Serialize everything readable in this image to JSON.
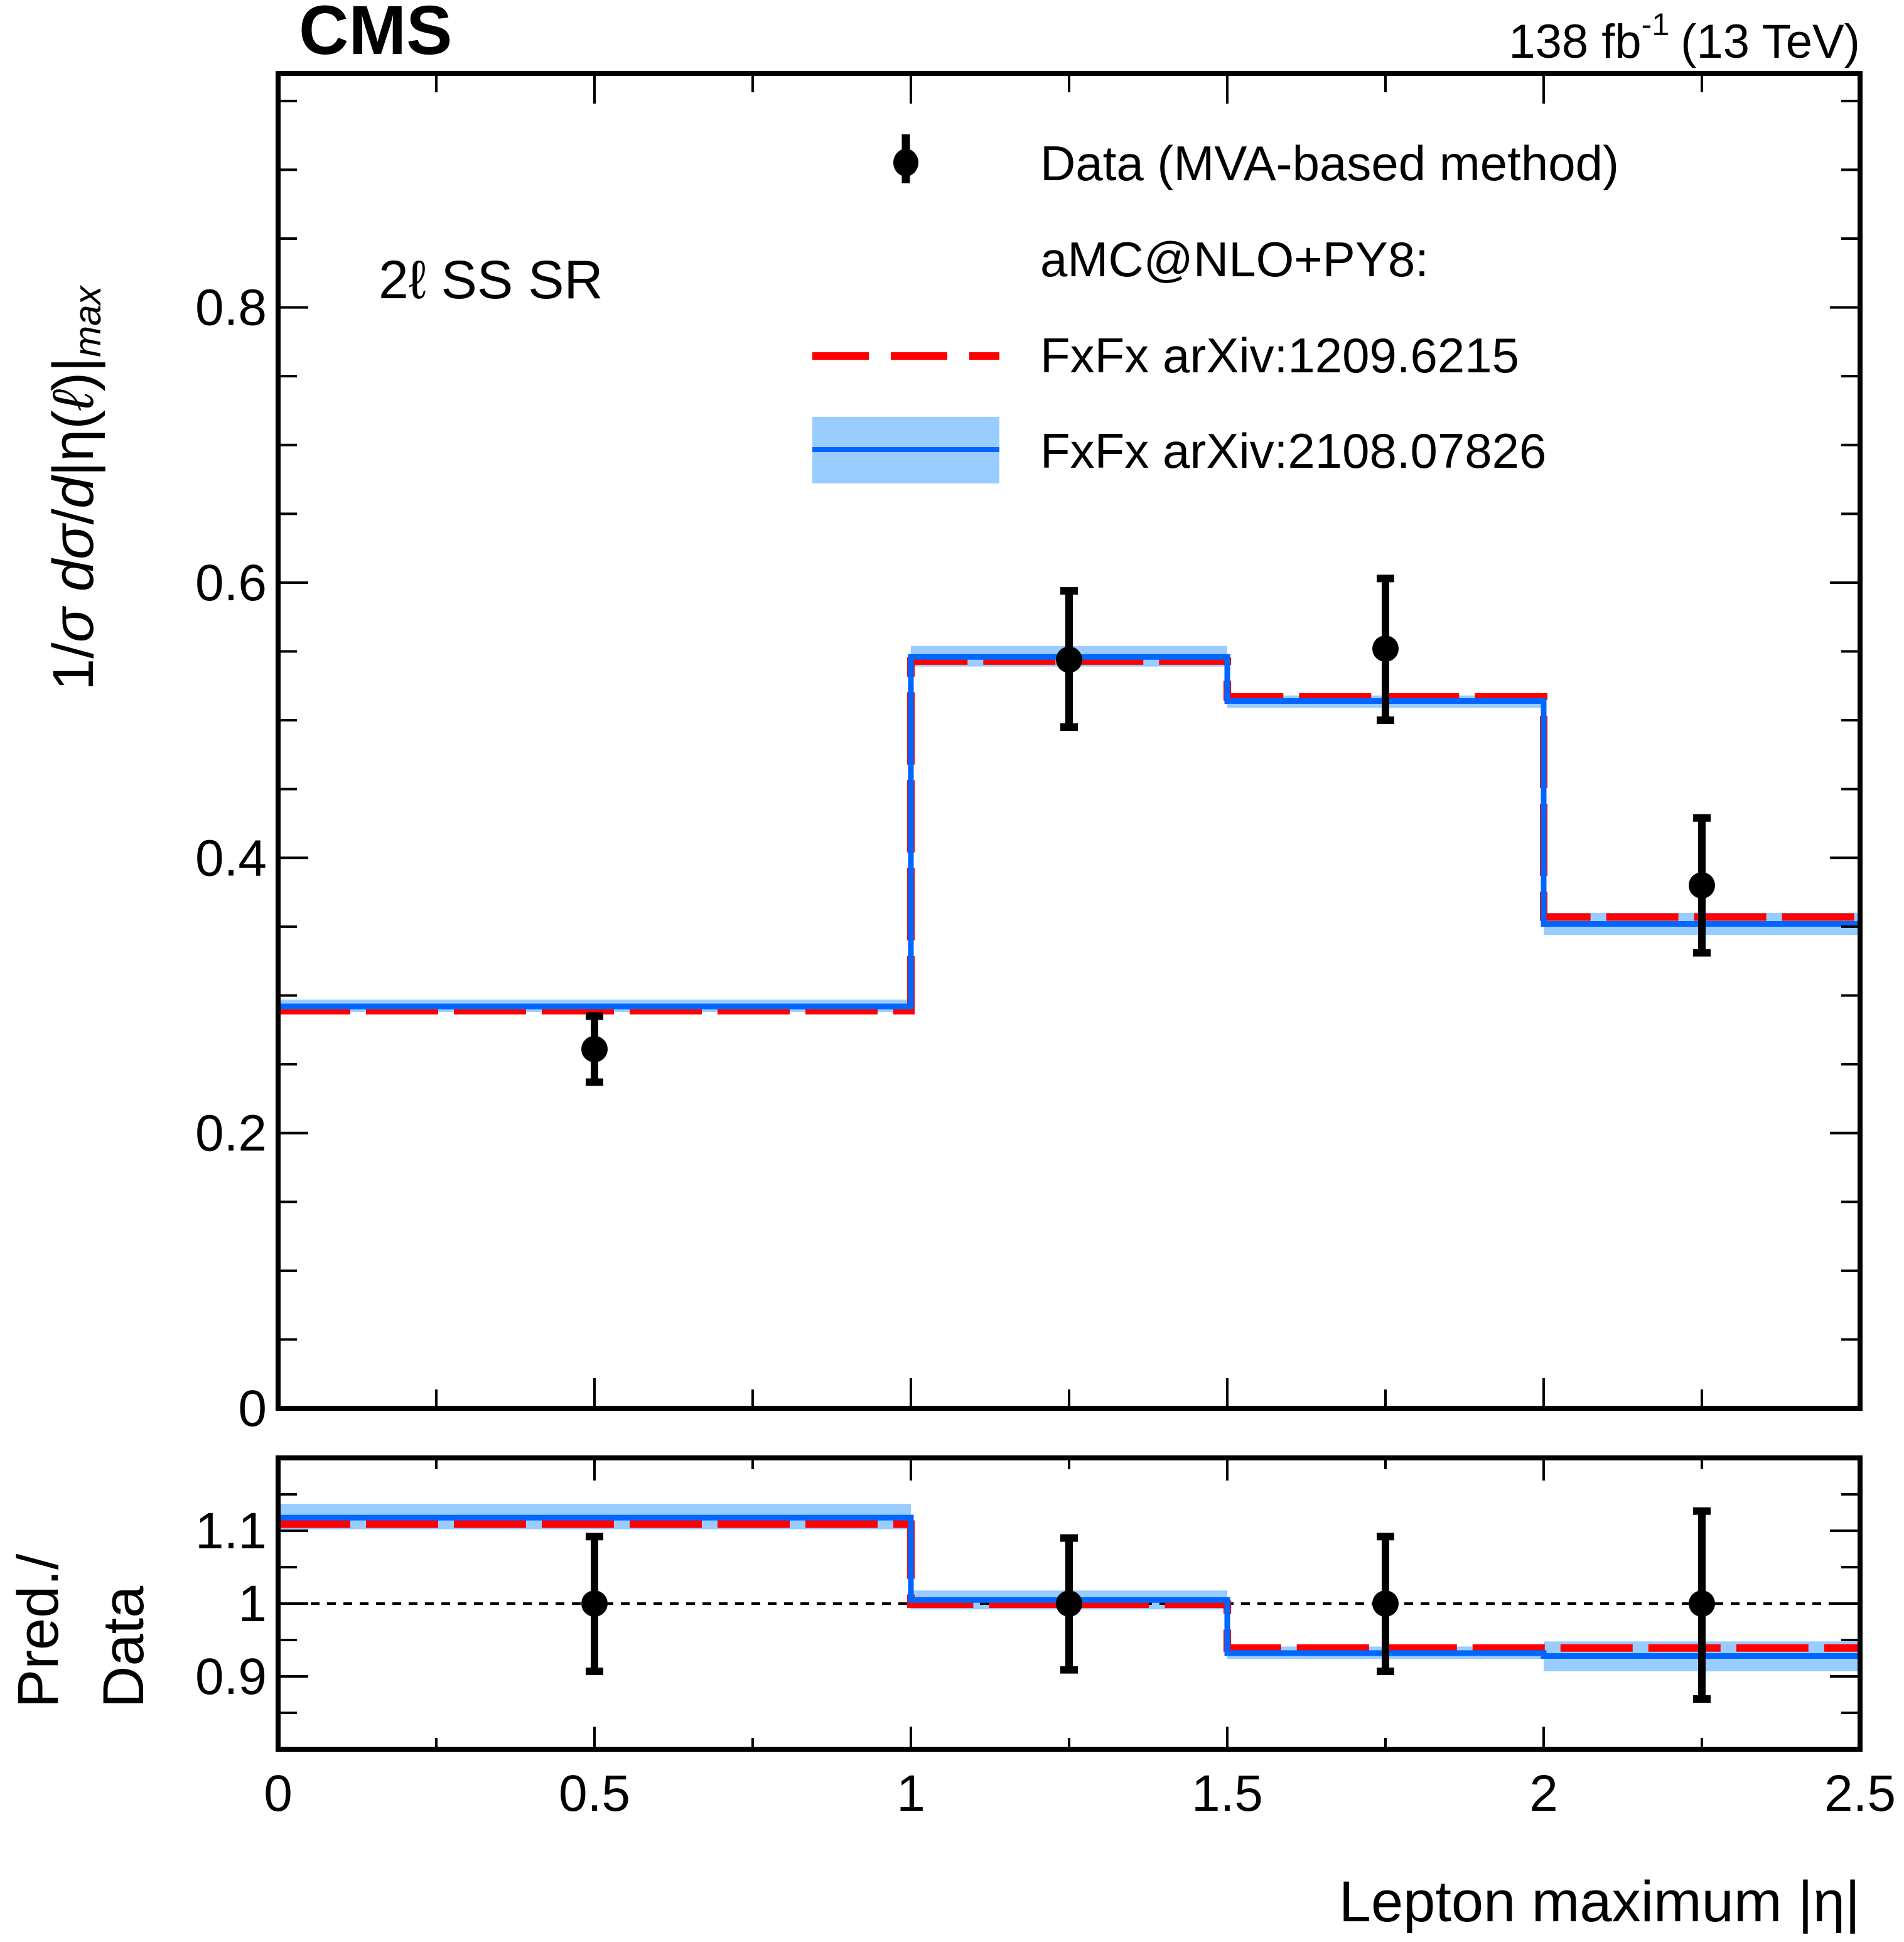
{
  "header": {
    "experiment": "CMS",
    "lumi": "138 fb",
    "lumi_sup": "-1",
    "energy": "(13 TeV)"
  },
  "region_label": "2ℓ SS SR",
  "legend": {
    "data": "Data (MVA-based method)",
    "generator": "aMC@NLO+PY8:",
    "fxfx_old": "FxFx arXiv:1209.6215",
    "fxfx_new": "FxFx arXiv:2108.07826"
  },
  "colors": {
    "data": "#000000",
    "fxfx_old_line": "#ff0000",
    "fxfx_new_line": "#0066ff",
    "fxfx_new_band": "#99ccff"
  },
  "chart_data": [
    {
      "panel": "main",
      "type": "histogram",
      "xlabel": "Lepton maximum |η|",
      "ylabel": "1/σ dσ/d|η(ℓ)|max",
      "xlim": [
        0,
        2.5
      ],
      "ylim": [
        0,
        0.97
      ],
      "x_ticks": [
        "0",
        "0.5",
        "1",
        "1.5",
        "2",
        "2.5"
      ],
      "y_ticks": [
        "0",
        "0.2",
        "0.4",
        "0.6",
        "0.8"
      ],
      "y_tick_values": [
        0,
        0.2,
        0.4,
        0.6,
        0.8
      ],
      "bin_edges": [
        0,
        1,
        1.5,
        2,
        2.5
      ],
      "series": [
        {
          "name": "Data (MVA-based method)",
          "kind": "points",
          "x": [
            0.5,
            1.25,
            1.75,
            2.25
          ],
          "y": [
            0.261,
            0.544,
            0.552,
            0.38
          ],
          "y_low": [
            0.237,
            0.495,
            0.5,
            0.331
          ],
          "y_high": [
            0.285,
            0.594,
            0.603,
            0.429
          ]
        },
        {
          "name": "FxFx arXiv:1209.6215",
          "kind": "step-dashed",
          "values": [
            0.289,
            0.543,
            0.517,
            0.357
          ]
        },
        {
          "name": "FxFx arXiv:2108.07826",
          "kind": "step-band",
          "values": [
            0.292,
            0.546,
            0.514,
            0.352
          ],
          "band_low": [
            0.288,
            0.539,
            0.509,
            0.344
          ],
          "band_high": [
            0.297,
            0.554,
            0.518,
            0.36
          ]
        }
      ]
    },
    {
      "panel": "ratio",
      "type": "histogram",
      "xlabel": "Lepton maximum |η|",
      "ylabel": "Pred./ Data",
      "ylabel_lines": [
        "Pred./",
        "Data"
      ],
      "xlim": [
        0,
        2.5
      ],
      "ylim": [
        0.8,
        1.2
      ],
      "y_ticks": [
        "0.9",
        "1",
        "1.1"
      ],
      "y_tick_values": [
        0.9,
        1.0,
        1.1
      ],
      "reference_line": 1.0,
      "bin_edges": [
        0,
        1,
        1.5,
        2,
        2.5
      ],
      "series": [
        {
          "name": "Data (MVA-based method)",
          "kind": "points",
          "x": [
            0.5,
            1.25,
            1.75,
            2.25
          ],
          "y": [
            1.0,
            1.0,
            1.0,
            1.0
          ],
          "y_low": [
            0.907,
            0.909,
            0.907,
            0.869
          ],
          "y_high": [
            1.092,
            1.09,
            1.092,
            1.127
          ]
        },
        {
          "name": "FxFx arXiv:1209.6215",
          "kind": "step-dashed",
          "values": [
            1.109,
            0.999,
            0.939,
            0.939
          ]
        },
        {
          "name": "FxFx arXiv:2108.07826",
          "kind": "step-band",
          "values": [
            1.118,
            1.005,
            0.932,
            0.928
          ],
          "band_low": [
            1.102,
            0.992,
            0.924,
            0.907
          ],
          "band_high": [
            1.137,
            1.018,
            0.941,
            0.948
          ]
        }
      ]
    }
  ]
}
